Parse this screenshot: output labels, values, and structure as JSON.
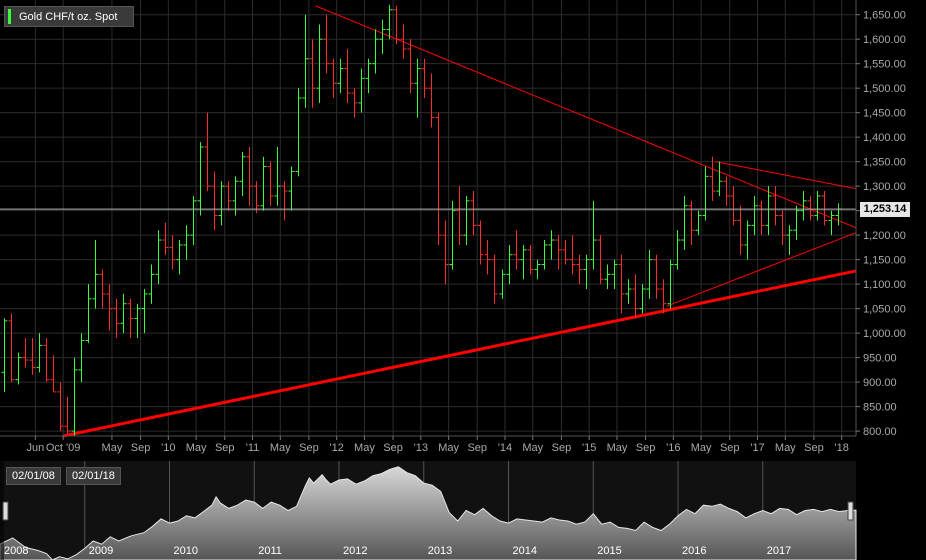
{
  "legend": {
    "label": "Gold CHF/t oz. Spot",
    "swatch_color": "#39ff3a"
  },
  "price_tag": {
    "value": "1,253.14",
    "price": 1253.14
  },
  "range_selector": {
    "start_label": "02/01/08",
    "end_label": "02/01/18"
  },
  "colors": {
    "up": "#39ff3a",
    "down": "#ff2a2a",
    "trendline": "#ff0000",
    "grid": "#2c2c2c"
  },
  "chart_data": {
    "type": "ohlc",
    "title": "",
    "y_ticks": [
      {
        "v": 800,
        "label": "800.00"
      },
      {
        "v": 850,
        "label": "850.00"
      },
      {
        "v": 900,
        "label": "900.00"
      },
      {
        "v": 950,
        "label": "950.00"
      },
      {
        "v": 1000,
        "label": "1,000.00"
      },
      {
        "v": 1050,
        "label": "1,050.00"
      },
      {
        "v": 1100,
        "label": "1,100.00"
      },
      {
        "v": 1150,
        "label": "1,150.00"
      },
      {
        "v": 1200,
        "label": "1,200.00"
      },
      {
        "v": 1250,
        "label": "1,250.00"
      },
      {
        "v": 1300,
        "label": "1,300.00"
      },
      {
        "v": 1350,
        "label": "1,350.00"
      },
      {
        "v": 1400,
        "label": "1,400.00"
      },
      {
        "v": 1450,
        "label": "1,450.00"
      },
      {
        "v": 1500,
        "label": "1,500.00"
      },
      {
        "v": 1550,
        "label": "1,550.00"
      },
      {
        "v": 1600,
        "label": "1,600.00"
      },
      {
        "v": 1650,
        "label": "1,650.00"
      }
    ],
    "ylim": [
      790,
      1680
    ],
    "x_ticks": [
      {
        "t": 2009.42,
        "label": "Jun"
      },
      {
        "t": 2009.75,
        "label": "Oct '09"
      },
      {
        "t": 2010.33,
        "label": "May"
      },
      {
        "t": 2010.67,
        "label": "Sep"
      },
      {
        "t": 2011.0,
        "label": "'10"
      },
      {
        "t": 2011.33,
        "label": "May"
      },
      {
        "t": 2011.67,
        "label": "Sep"
      },
      {
        "t": 2012.0,
        "label": "'11"
      },
      {
        "t": 2012.33,
        "label": "May"
      },
      {
        "t": 2012.67,
        "label": "Sep"
      },
      {
        "t": 2013.0,
        "label": "'12"
      },
      {
        "t": 2013.33,
        "label": "May"
      },
      {
        "t": 2013.67,
        "label": "Sep"
      },
      {
        "t": 2014.0,
        "label": "'13"
      },
      {
        "t": 2014.33,
        "label": "May"
      },
      {
        "t": 2014.67,
        "label": "Sep"
      },
      {
        "t": 2015.0,
        "label": "'14"
      },
      {
        "t": 2015.33,
        "label": "May"
      },
      {
        "t": 2015.67,
        "label": "Sep"
      },
      {
        "t": 2016.0,
        "label": "'15"
      },
      {
        "t": 2016.33,
        "label": "May"
      },
      {
        "t": 2016.67,
        "label": "Sep"
      },
      {
        "t": 2017.0,
        "label": "'16"
      },
      {
        "t": 2017.33,
        "label": "May"
      },
      {
        "t": 2017.67,
        "label": "Sep"
      },
      {
        "t": 2018.0,
        "label": "'17"
      },
      {
        "t": 2018.33,
        "label": "May"
      },
      {
        "t": 2018.67,
        "label": "Sep"
      },
      {
        "t": 2019.0,
        "label": "'18"
      }
    ],
    "xlim": [
      2009.0,
      2019.17
    ],
    "trendlines": [
      {
        "name": "long-term-support",
        "t1": 2009.75,
        "v1": 790,
        "t2": 2019.17,
        "v2": 1127,
        "width": 3
      },
      {
        "name": "upper-resistance-long",
        "t1": 2012.75,
        "v1": 1668,
        "t2": 2019.17,
        "v2": 1215,
        "width": 1
      },
      {
        "name": "upper-resistance-short",
        "t1": 2017.5,
        "v1": 1350,
        "t2": 2019.17,
        "v2": 1295,
        "width": 1
      },
      {
        "name": "lower-support-short",
        "t1": 2016.92,
        "v1": 1055,
        "t2": 2019.17,
        "v2": 1205,
        "width": 1
      }
    ],
    "bars": [
      [
        920,
        1030,
        880,
        1025
      ],
      [
        1025,
        1040,
        900,
        905
      ],
      [
        905,
        960,
        895,
        950
      ],
      [
        950,
        990,
        930,
        945
      ],
      [
        945,
        990,
        915,
        930
      ],
      [
        930,
        1000,
        920,
        975
      ],
      [
        975,
        990,
        900,
        905
      ],
      [
        905,
        955,
        880,
        880
      ],
      [
        880,
        900,
        800,
        810
      ],
      [
        810,
        870,
        795,
        800
      ],
      [
        800,
        950,
        790,
        925
      ],
      [
        925,
        1000,
        900,
        985
      ],
      [
        985,
        1100,
        980,
        1070
      ],
      [
        1070,
        1190,
        1050,
        1120
      ],
      [
        1120,
        1130,
        1050,
        1080
      ],
      [
        1080,
        1100,
        1005,
        1050
      ],
      [
        1050,
        1070,
        990,
        1020
      ],
      [
        1020,
        1080,
        1000,
        1060
      ],
      [
        1060,
        1070,
        990,
        1030
      ],
      [
        1030,
        1060,
        990,
        1050
      ],
      [
        1050,
        1090,
        1000,
        1080
      ],
      [
        1080,
        1140,
        1060,
        1120
      ],
      [
        1120,
        1210,
        1100,
        1190
      ],
      [
        1190,
        1225,
        1160,
        1175
      ],
      [
        1175,
        1200,
        1130,
        1150
      ],
      [
        1150,
        1190,
        1120,
        1180
      ],
      [
        1180,
        1220,
        1150,
        1200
      ],
      [
        1200,
        1280,
        1180,
        1270
      ],
      [
        1270,
        1390,
        1240,
        1380
      ],
      [
        1380,
        1450,
        1290,
        1300
      ],
      [
        1300,
        1330,
        1210,
        1240
      ],
      [
        1240,
        1310,
        1220,
        1300
      ],
      [
        1300,
        1310,
        1250,
        1270
      ],
      [
        1270,
        1320,
        1240,
        1310
      ],
      [
        1310,
        1370,
        1280,
        1360
      ],
      [
        1360,
        1380,
        1260,
        1300
      ],
      [
        1300,
        1310,
        1245,
        1260
      ],
      [
        1260,
        1360,
        1250,
        1340
      ],
      [
        1340,
        1350,
        1260,
        1280
      ],
      [
        1280,
        1380,
        1260,
        1300
      ],
      [
        1300,
        1310,
        1230,
        1290
      ],
      [
        1290,
        1340,
        1250,
        1330
      ],
      [
        1330,
        1500,
        1320,
        1480
      ],
      [
        1480,
        1650,
        1460,
        1560
      ],
      [
        1560,
        1600,
        1460,
        1500
      ],
      [
        1500,
        1630,
        1470,
        1600
      ],
      [
        1600,
        1650,
        1530,
        1550
      ],
      [
        1550,
        1560,
        1480,
        1510
      ],
      [
        1510,
        1560,
        1490,
        1540
      ],
      [
        1540,
        1580,
        1470,
        1490
      ],
      [
        1490,
        1500,
        1440,
        1470
      ],
      [
        1470,
        1540,
        1450,
        1520
      ],
      [
        1520,
        1560,
        1490,
        1550
      ],
      [
        1550,
        1620,
        1530,
        1600
      ],
      [
        1600,
        1640,
        1570,
        1620
      ],
      [
        1620,
        1670,
        1600,
        1660
      ],
      [
        1660,
        1668,
        1590,
        1600
      ],
      [
        1600,
        1630,
        1560,
        1580
      ],
      [
        1580,
        1600,
        1490,
        1510
      ],
      [
        1510,
        1560,
        1440,
        1540
      ],
      [
        1540,
        1560,
        1480,
        1500
      ],
      [
        1500,
        1530,
        1420,
        1440
      ],
      [
        1440,
        1450,
        1180,
        1200
      ],
      [
        1200,
        1230,
        1100,
        1140
      ],
      [
        1140,
        1270,
        1130,
        1250
      ],
      [
        1250,
        1300,
        1180,
        1200
      ],
      [
        1200,
        1280,
        1180,
        1270
      ],
      [
        1270,
        1290,
        1200,
        1220
      ],
      [
        1220,
        1230,
        1140,
        1160
      ],
      [
        1160,
        1190,
        1120,
        1150
      ],
      [
        1150,
        1160,
        1060,
        1080
      ],
      [
        1080,
        1130,
        1070,
        1120
      ],
      [
        1120,
        1180,
        1100,
        1160
      ],
      [
        1160,
        1210,
        1130,
        1150
      ],
      [
        1150,
        1180,
        1110,
        1170
      ],
      [
        1170,
        1180,
        1120,
        1130
      ],
      [
        1130,
        1150,
        1110,
        1140
      ],
      [
        1140,
        1190,
        1130,
        1180
      ],
      [
        1180,
        1210,
        1150,
        1190
      ],
      [
        1190,
        1200,
        1130,
        1170
      ],
      [
        1170,
        1190,
        1140,
        1150
      ],
      [
        1150,
        1200,
        1120,
        1140
      ],
      [
        1140,
        1160,
        1100,
        1130
      ],
      [
        1130,
        1160,
        1090,
        1150
      ],
      [
        1150,
        1270,
        1130,
        1190
      ],
      [
        1190,
        1200,
        1100,
        1110
      ],
      [
        1110,
        1140,
        1090,
        1120
      ],
      [
        1120,
        1150,
        1090,
        1140
      ],
      [
        1140,
        1160,
        1040,
        1080
      ],
      [
        1080,
        1110,
        1060,
        1090
      ],
      [
        1090,
        1120,
        1030,
        1050
      ],
      [
        1050,
        1100,
        1040,
        1090
      ],
      [
        1090,
        1170,
        1070,
        1150
      ],
      [
        1150,
        1160,
        1070,
        1090
      ],
      [
        1090,
        1110,
        1040,
        1060
      ],
      [
        1060,
        1150,
        1050,
        1140
      ],
      [
        1140,
        1210,
        1130,
        1190
      ],
      [
        1190,
        1280,
        1170,
        1260
      ],
      [
        1260,
        1270,
        1180,
        1210
      ],
      [
        1210,
        1250,
        1200,
        1240
      ],
      [
        1240,
        1340,
        1230,
        1320
      ],
      [
        1320,
        1360,
        1270,
        1290
      ],
      [
        1290,
        1350,
        1280,
        1310
      ],
      [
        1310,
        1320,
        1260,
        1280
      ],
      [
        1280,
        1300,
        1220,
        1230
      ],
      [
        1230,
        1260,
        1160,
        1180
      ],
      [
        1180,
        1230,
        1150,
        1220
      ],
      [
        1220,
        1280,
        1200,
        1260
      ],
      [
        1260,
        1270,
        1200,
        1220
      ],
      [
        1220,
        1300,
        1200,
        1280
      ],
      [
        1280,
        1300,
        1220,
        1240
      ],
      [
        1240,
        1250,
        1180,
        1200
      ],
      [
        1200,
        1220,
        1160,
        1210
      ],
      [
        1210,
        1260,
        1190,
        1250
      ],
      [
        1250,
        1290,
        1230,
        1270
      ],
      [
        1270,
        1280,
        1230,
        1240
      ],
      [
        1240,
        1290,
        1230,
        1280
      ],
      [
        1280,
        1290,
        1220,
        1230
      ],
      [
        1230,
        1250,
        1200,
        1240
      ],
      [
        1240,
        1265,
        1220,
        1253
      ]
    ]
  },
  "navigator": {
    "years": [
      {
        "t": 2008.0,
        "label": "2008"
      },
      {
        "t": 2009.0,
        "label": "2009"
      },
      {
        "t": 2010.0,
        "label": "2010"
      },
      {
        "t": 2011.0,
        "label": "2011"
      },
      {
        "t": 2012.0,
        "label": "2012"
      },
      {
        "t": 2013.0,
        "label": "2013"
      },
      {
        "t": 2014.0,
        "label": "2014"
      },
      {
        "t": 2015.0,
        "label": "2015"
      },
      {
        "t": 2016.0,
        "label": "2016"
      },
      {
        "t": 2017.0,
        "label": "2017"
      }
    ],
    "xlim": [
      2008.0,
      2018.1
    ],
    "ylim": [
      780,
      1720
    ],
    "series": [
      [
        2008.0,
        930
      ],
      [
        2008.15,
        990
      ],
      [
        2008.3,
        900
      ],
      [
        2008.45,
        870
      ],
      [
        2008.55,
        840
      ],
      [
        2008.62,
        780
      ],
      [
        2008.7,
        810
      ],
      [
        2008.8,
        790
      ],
      [
        2008.9,
        830
      ],
      [
        2009.0,
        890
      ],
      [
        2009.1,
        960
      ],
      [
        2009.2,
        930
      ],
      [
        2009.3,
        1000
      ],
      [
        2009.4,
        960
      ],
      [
        2009.55,
        1010
      ],
      [
        2009.7,
        1040
      ],
      [
        2009.8,
        1100
      ],
      [
        2009.9,
        1170
      ],
      [
        2010.0,
        1130
      ],
      [
        2010.1,
        1150
      ],
      [
        2010.2,
        1200
      ],
      [
        2010.3,
        1180
      ],
      [
        2010.4,
        1240
      ],
      [
        2010.5,
        1300
      ],
      [
        2010.55,
        1380
      ],
      [
        2010.6,
        1320
      ],
      [
        2010.7,
        1270
      ],
      [
        2010.8,
        1300
      ],
      [
        2010.9,
        1350
      ],
      [
        2011.0,
        1330
      ],
      [
        2011.1,
        1270
      ],
      [
        2011.2,
        1330
      ],
      [
        2011.3,
        1300
      ],
      [
        2011.4,
        1250
      ],
      [
        2011.5,
        1290
      ],
      [
        2011.6,
        1480
      ],
      [
        2011.65,
        1560
      ],
      [
        2011.7,
        1510
      ],
      [
        2011.8,
        1590
      ],
      [
        2011.85,
        1540
      ],
      [
        2011.9,
        1500
      ],
      [
        2012.0,
        1540
      ],
      [
        2012.1,
        1550
      ],
      [
        2012.2,
        1500
      ],
      [
        2012.3,
        1530
      ],
      [
        2012.4,
        1580
      ],
      [
        2012.5,
        1600
      ],
      [
        2012.6,
        1640
      ],
      [
        2012.7,
        1665
      ],
      [
        2012.8,
        1610
      ],
      [
        2012.9,
        1580
      ],
      [
        2013.0,
        1510
      ],
      [
        2013.1,
        1490
      ],
      [
        2013.2,
        1430
      ],
      [
        2013.3,
        1230
      ],
      [
        2013.4,
        1150
      ],
      [
        2013.5,
        1250
      ],
      [
        2013.6,
        1210
      ],
      [
        2013.7,
        1270
      ],
      [
        2013.8,
        1200
      ],
      [
        2013.9,
        1150
      ],
      [
        2014.0,
        1130
      ],
      [
        2014.1,
        1170
      ],
      [
        2014.2,
        1160
      ],
      [
        2014.3,
        1150
      ],
      [
        2014.4,
        1140
      ],
      [
        2014.5,
        1180
      ],
      [
        2014.6,
        1160
      ],
      [
        2014.7,
        1150
      ],
      [
        2014.8,
        1120
      ],
      [
        2014.9,
        1140
      ],
      [
        2015.0,
        1220
      ],
      [
        2015.1,
        1120
      ],
      [
        2015.2,
        1140
      ],
      [
        2015.3,
        1090
      ],
      [
        2015.4,
        1080
      ],
      [
        2015.5,
        1060
      ],
      [
        2015.6,
        1140
      ],
      [
        2015.7,
        1090
      ],
      [
        2015.8,
        1060
      ],
      [
        2015.9,
        1120
      ],
      [
        2016.0,
        1200
      ],
      [
        2016.1,
        1260
      ],
      [
        2016.2,
        1220
      ],
      [
        2016.3,
        1300
      ],
      [
        2016.4,
        1290
      ],
      [
        2016.5,
        1310
      ],
      [
        2016.6,
        1270
      ],
      [
        2016.7,
        1240
      ],
      [
        2016.8,
        1180
      ],
      [
        2016.9,
        1220
      ],
      [
        2017.0,
        1250
      ],
      [
        2017.1,
        1220
      ],
      [
        2017.2,
        1270
      ],
      [
        2017.3,
        1260
      ],
      [
        2017.4,
        1210
      ],
      [
        2017.5,
        1250
      ],
      [
        2017.6,
        1260
      ],
      [
        2017.7,
        1240
      ],
      [
        2017.8,
        1260
      ],
      [
        2017.9,
        1240
      ],
      [
        2018.0,
        1250
      ],
      [
        2018.1,
        1253
      ]
    ]
  }
}
